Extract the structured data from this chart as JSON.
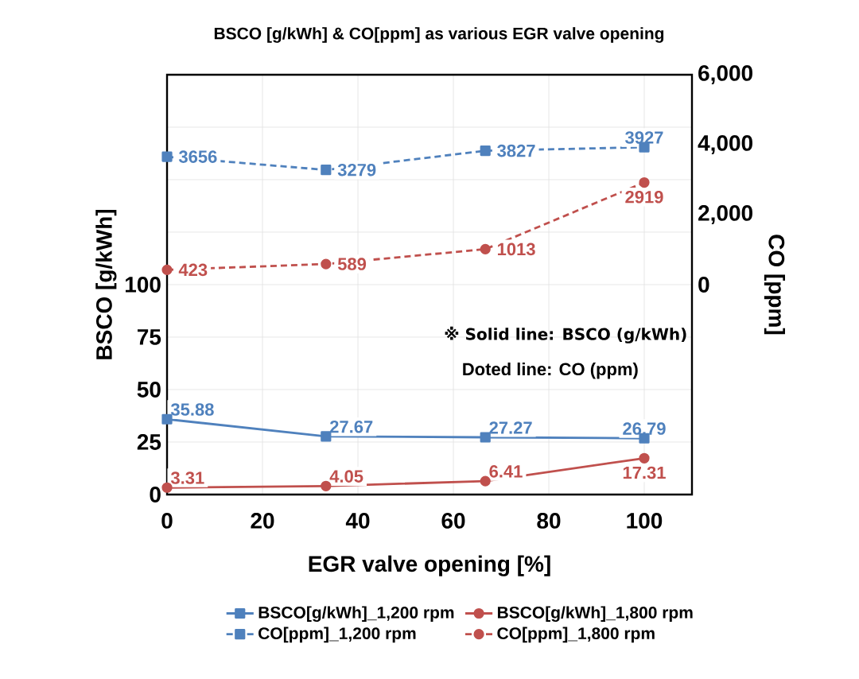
{
  "chart_data": {
    "type": "line",
    "title": "BSCO [g/kWh] & CO[ppm] as various EGR valve opening",
    "xlabel": "EGR valve opening [%]",
    "ylabel": "BSCO [g/kWh]",
    "y2label": "CO [ppm]",
    "x": [
      0,
      33.3,
      66.7,
      100
    ],
    "xlim": [
      0,
      110
    ],
    "xticks": [
      0,
      20,
      40,
      60,
      80,
      100
    ],
    "ylim": [
      0,
      200
    ],
    "yticks": [
      0,
      25,
      50,
      75,
      100,
      {
        "value": 125,
        "label": null
      },
      {
        "value": 150,
        "label": null
      },
      {
        "value": 175,
        "label": null
      },
      {
        "value": 200,
        "label": null
      }
    ],
    "y2lim": [
      -6000,
      6000
    ],
    "y2ticks": [
      0,
      {
        "value": 2000,
        "label": "2,000"
      },
      {
        "value": 4000,
        "label": "4,000"
      },
      {
        "value": 6000,
        "label": "6,000"
      }
    ],
    "grid": true,
    "legend": "bottom",
    "data_labels": true,
    "annotations": [
      "※ Solid line: BSCO (g/kWh)",
      "Doted line: CO (ppm)"
    ],
    "series": [
      {
        "name": "BSCO[g/kWh]_1,200 rpm",
        "color": "#4f81bd",
        "marker": "square",
        "line_style": "solid",
        "axis": "y",
        "values": [
          35.88,
          27.67,
          27.27,
          26.79
        ]
      },
      {
        "name": "BSCO[g/kWh]_1,800 rpm",
        "color": "#c0504d",
        "marker": "circle",
        "line_style": "solid",
        "axis": "y",
        "values": [
          3.31,
          4.05,
          6.41,
          17.31
        ]
      },
      {
        "name": "CO[ppm]_1,200 rpm",
        "color": "#4f81bd",
        "marker": "square",
        "line_style": "dashed",
        "axis": "y2",
        "values": [
          3656,
          3279,
          3827,
          3927
        ]
      },
      {
        "name": "CO[ppm]_1,800 rpm",
        "color": "#c0504d",
        "marker": "circle",
        "line_style": "dashed",
        "axis": "y2",
        "values": [
          423,
          589,
          1013,
          2919
        ]
      }
    ]
  }
}
